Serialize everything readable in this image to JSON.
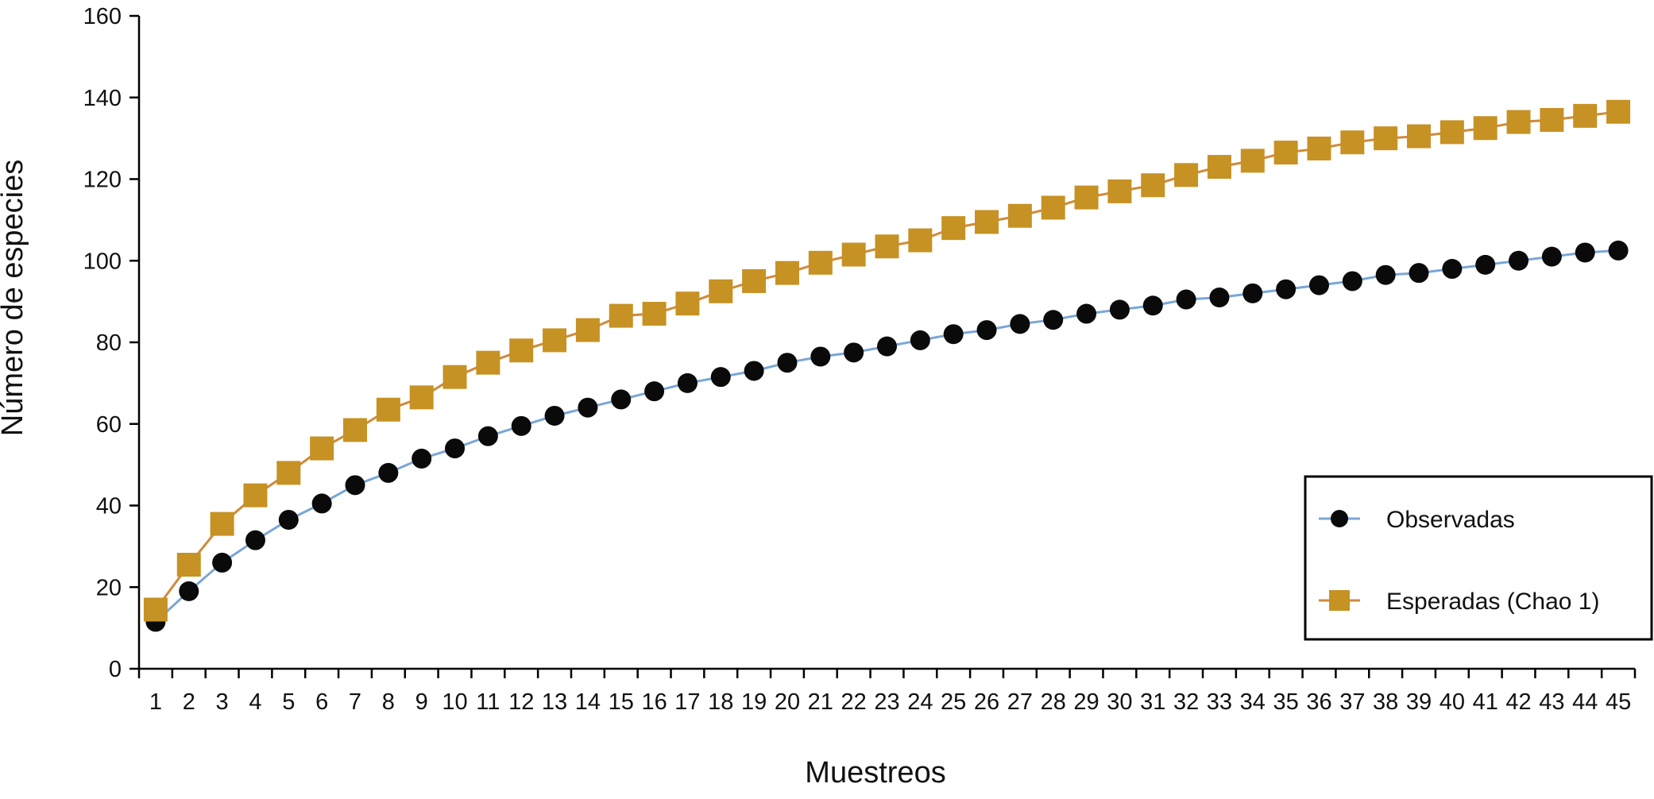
{
  "chart_data": {
    "type": "line",
    "xlabel": "Muestreos",
    "ylabel": "Número de especies",
    "ylim": [
      0,
      160
    ],
    "y_ticks": [
      0,
      20,
      40,
      60,
      80,
      100,
      120,
      140,
      160
    ],
    "categories": [
      "1",
      "2",
      "3",
      "4",
      "5",
      "6",
      "7",
      "8",
      "9",
      "10",
      "11",
      "12",
      "13",
      "14",
      "15",
      "16",
      "17",
      "18",
      "19",
      "20",
      "21",
      "22",
      "23",
      "24",
      "25",
      "26",
      "27",
      "28",
      "29",
      "30",
      "31",
      "32",
      "33",
      "34",
      "35",
      "36",
      "37",
      "38",
      "39",
      "40",
      "41",
      "42",
      "43",
      "44",
      "45"
    ],
    "legend_position": "right",
    "grid": false,
    "series": [
      {
        "name": "Observadas",
        "marker": "circle",
        "line_color": "#7aa6d6",
        "marker_color": "#0a0a0a",
        "values": [
          11.5,
          19,
          26,
          31.5,
          36.5,
          40.5,
          45,
          48,
          51.5,
          54,
          57,
          59.5,
          62,
          64,
          66,
          68,
          70,
          71.5,
          73,
          75,
          76.5,
          77.5,
          79,
          80.5,
          82,
          83,
          84.5,
          85.5,
          87,
          88,
          89,
          90.5,
          91,
          92,
          93,
          94,
          95,
          96.5,
          97,
          98,
          99,
          100,
          101,
          102,
          102.5
        ]
      },
      {
        "name": "Esperadas (Chao 1)",
        "marker": "square",
        "line_color": "#d08a3a",
        "marker_color": "#c69223",
        "values": [
          14.5,
          25.5,
          35.5,
          42.5,
          48,
          54,
          58.5,
          63.5,
          66.5,
          71.5,
          75,
          78,
          80.5,
          83,
          86.5,
          87,
          89.5,
          92.5,
          95,
          97,
          99.5,
          101.5,
          103.5,
          105,
          108,
          109.5,
          111,
          113,
          115.5,
          117,
          118.5,
          121,
          123,
          124.5,
          126.5,
          127.5,
          129,
          130,
          130.5,
          131.5,
          132.5,
          134,
          134.5,
          135.5,
          136.5
        ]
      }
    ]
  }
}
